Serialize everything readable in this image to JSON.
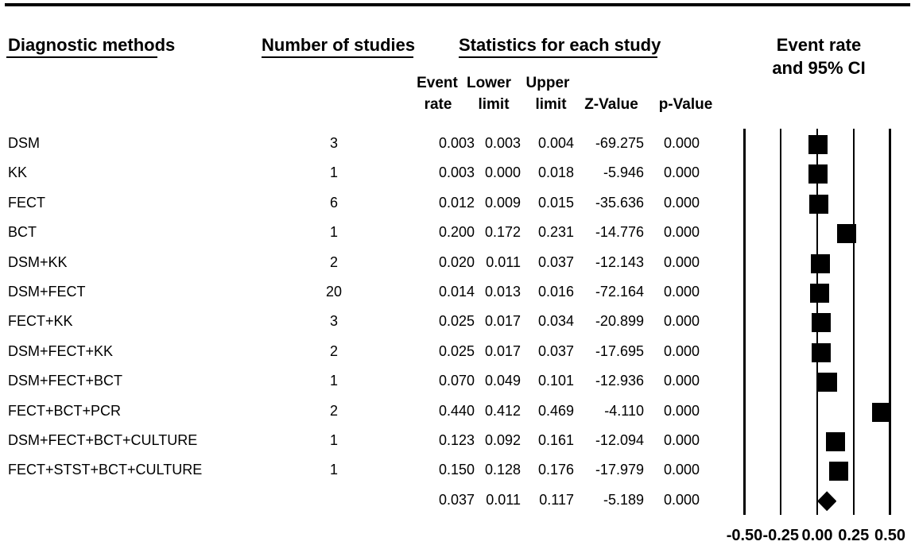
{
  "colors": {
    "background": "#ffffff",
    "text": "#000000",
    "marker": "#000000",
    "rule": "#000000"
  },
  "header": {
    "methods": "Diagnostic methods",
    "n_studies": "Number of studies",
    "stats_group": "Statistics for each study",
    "plot_group_line1": "Event rate",
    "plot_group_line2": "and 95% CI",
    "sub_event_1": "Event",
    "sub_event_2": "rate",
    "sub_lower_1": "Lower",
    "sub_lower_2": "limit",
    "sub_upper_1": "Upper",
    "sub_upper_2": "limit",
    "sub_z": "Z-Value",
    "sub_p": "p-Value"
  },
  "chart_data": {
    "type": "forest",
    "title": "Event rate and 95% CI by diagnostic method",
    "xlim": [
      -0.5,
      0.5
    ],
    "grid": true,
    "marker_px": 24,
    "axis_ticks": [
      {
        "label": "-0.50",
        "value": -0.5
      },
      {
        "label": "-0.25",
        "value": -0.25
      },
      {
        "label": "0.00",
        "value": 0.0
      },
      {
        "label": "0.25",
        "value": 0.25
      },
      {
        "label": "0.50",
        "value": 0.5
      }
    ],
    "rows": [
      {
        "method": "DSM",
        "n_studies": "3",
        "event_rate": "0.003",
        "lower": "0.003",
        "upper": "0.004",
        "z": "-69.275",
        "p": "0.000"
      },
      {
        "method": "KK",
        "n_studies": "1",
        "event_rate": "0.003",
        "lower": "0.000",
        "upper": "0.018",
        "z": "-5.946",
        "p": "0.000"
      },
      {
        "method": "FECT",
        "n_studies": "6",
        "event_rate": "0.012",
        "lower": "0.009",
        "upper": "0.015",
        "z": "-35.636",
        "p": "0.000"
      },
      {
        "method": "BCT",
        "n_studies": "1",
        "event_rate": "0.200",
        "lower": "0.172",
        "upper": "0.231",
        "z": "-14.776",
        "p": "0.000"
      },
      {
        "method": "DSM+KK",
        "n_studies": "2",
        "event_rate": "0.020",
        "lower": "0.011",
        "upper": "0.037",
        "z": "-12.143",
        "p": "0.000"
      },
      {
        "method": "DSM+FECT",
        "n_studies": "20",
        "event_rate": "0.014",
        "lower": "0.013",
        "upper": "0.016",
        "z": "-72.164",
        "p": "0.000"
      },
      {
        "method": "FECT+KK",
        "n_studies": "3",
        "event_rate": "0.025",
        "lower": "0.017",
        "upper": "0.034",
        "z": "-20.899",
        "p": "0.000"
      },
      {
        "method": "DSM+FECT+KK",
        "n_studies": "2",
        "event_rate": "0.025",
        "lower": "0.017",
        "upper": "0.037",
        "z": "-17.695",
        "p": "0.000"
      },
      {
        "method": "DSM+FECT+BCT",
        "n_studies": "1",
        "event_rate": "0.070",
        "lower": "0.049",
        "upper": "0.101",
        "z": "-12.936",
        "p": "0.000"
      },
      {
        "method": "FECT+BCT+PCR",
        "n_studies": "2",
        "event_rate": "0.440",
        "lower": "0.412",
        "upper": "0.469",
        "z": "-4.110",
        "p": "0.000"
      },
      {
        "method": "DSM+FECT+BCT+CULTURE",
        "n_studies": "1",
        "event_rate": "0.123",
        "lower": "0.092",
        "upper": "0.161",
        "z": "-12.094",
        "p": "0.000"
      },
      {
        "method": "FECT+STST+BCT+CULTURE",
        "n_studies": "1",
        "event_rate": "0.150",
        "lower": "0.128",
        "upper": "0.176",
        "z": "-17.979",
        "p": "0.000"
      }
    ],
    "summary": {
      "method": "",
      "n_studies": "",
      "event_rate": "0.037",
      "lower": "0.011",
      "upper": "0.117",
      "z": "-5.189",
      "p": "0.000"
    }
  }
}
